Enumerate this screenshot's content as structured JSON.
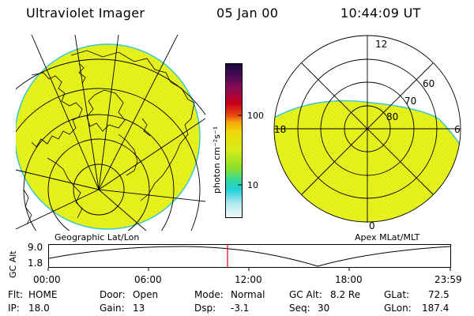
{
  "header": {
    "title": "Ultraviolet Imager",
    "date": "05 Jan 00",
    "time": "10:44:09 UT"
  },
  "colors": {
    "map_fill": "#e6f21a",
    "map_edge": "#39c7d6",
    "grid_line": "#000000",
    "coast_line": "#000000",
    "cursor_line": "#e00000"
  },
  "colorbar": {
    "unit_label": "photon cm⁻²s⁻¹",
    "tick_100": "100",
    "tick_10": "10",
    "stops": [
      "#1a0a3a",
      "#4a0a55",
      "#8a0a55",
      "#c8001a",
      "#e85010",
      "#f4a40a",
      "#f0d80a",
      "#d6ee18",
      "#8ae02a",
      "#30d8a0",
      "#20d0d8",
      "#a8e8f0",
      "#f4f8f8"
    ]
  },
  "left_panel": {
    "caption": "Geographic Lat/Lon",
    "icons": [
      "earth-grid-icon",
      "coastline-icon"
    ]
  },
  "right_panel": {
    "caption": "Apex MLat/MLT",
    "mlt_top": "12",
    "mlt_left": "18",
    "mlt_right": "6",
    "mlt_bottom": "0",
    "lat_60": "60",
    "lat_70": "70",
    "lat_80": "80"
  },
  "altitude_plot": {
    "axis_label": "GC Alt",
    "y_max": "9.0",
    "y_min": "1.8",
    "x_ticks": [
      "00:00",
      "06:00",
      "12:00",
      "18:00",
      "23:59"
    ],
    "cursor_time": "10:44"
  },
  "info": {
    "flt_label": "Flt:",
    "flt_value": "HOME",
    "ip_label": "IP:",
    "ip_value": "18.0",
    "door_label": "Door:",
    "door_value": "Open",
    "gain_label": "Gain:",
    "gain_value": "13",
    "mode_label": "Mode:",
    "mode_value": "Normal",
    "dsp_label": "Dsp:",
    "dsp_value": "-3.1",
    "gcalt_label": "GC Alt:",
    "gcalt_value": "8.2 Re",
    "seq_label": "Seq:",
    "seq_value": "30",
    "glat_label": "GLat:",
    "glat_value": "72.5",
    "glon_label": "GLon:",
    "glon_value": "187.4"
  }
}
